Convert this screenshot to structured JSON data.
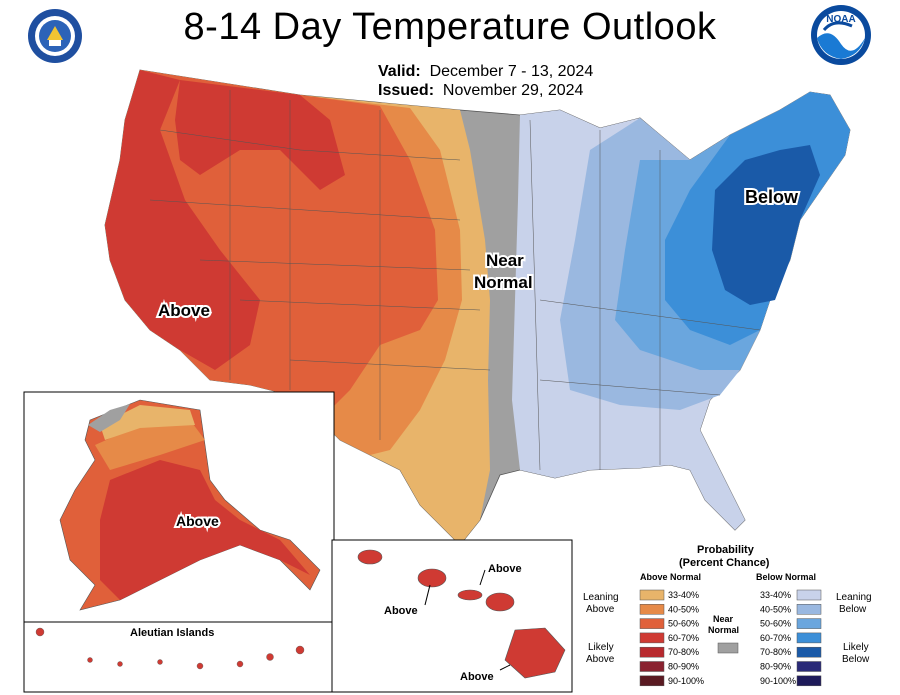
{
  "title": "8-14 Day Temperature Outlook",
  "valid_label": "Valid:",
  "valid_value": "December 7 - 13, 2024",
  "issued_label": "Issued:",
  "issued_value": "November 29, 2024",
  "logos": {
    "left": "department-of-commerce-seal",
    "right": "noaa-logo"
  },
  "map_labels": {
    "above_west": "Above",
    "near_normal_1": "Near",
    "near_normal_2": "Normal",
    "below_east": "Below",
    "above_alaska": "Above",
    "above_hawaii_1": "Above",
    "above_hawaii_2": "Above",
    "above_hawaii_3": "Above",
    "aleutian": "Aleutian Islands"
  },
  "legend": {
    "title_1": "Probability",
    "title_2": "(Percent Chance)",
    "above_header": "Above Normal",
    "below_header": "Below Normal",
    "near_1": "Near",
    "near_2": "Normal",
    "leaning_above_1": "Leaning",
    "leaning_above_2": "Above",
    "likely_above_1": "Likely",
    "likely_above_2": "Above",
    "leaning_below_1": "Leaning",
    "leaning_below_2": "Below",
    "likely_below_1": "Likely",
    "likely_below_2": "Below",
    "ranges": [
      "33-40%",
      "40-50%",
      "50-60%",
      "60-70%",
      "70-80%",
      "80-90%",
      "90-100%"
    ],
    "above_colors": [
      "#e8b46a",
      "#e68a48",
      "#e0603a",
      "#cf3a33",
      "#b82a2e",
      "#8a2230",
      "#5a1a22"
    ],
    "below_colors": [
      "#c8d2ea",
      "#9ab8e0",
      "#6aa6de",
      "#3c8fd8",
      "#1a5aa8",
      "#2a2a78",
      "#1e1a5a"
    ],
    "near_color": "#a0a0a0"
  }
}
